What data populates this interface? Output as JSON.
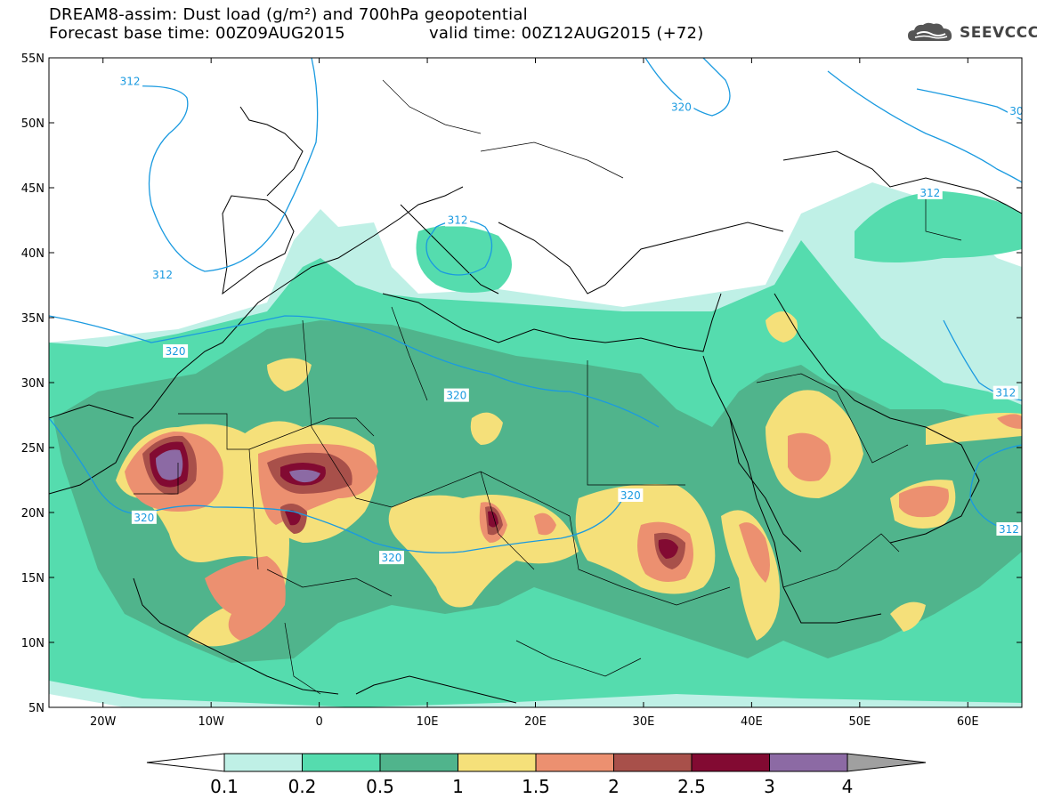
{
  "title": {
    "line1": "DREAM8-assim: Dust load (g/m²) and 700hPa geopotential",
    "base": "Forecast base time: 00Z09AUG2015",
    "valid": "valid time: 00Z12AUG2015 (+72)"
  },
  "logo": {
    "text": "SEEVCCC",
    "icon": "cloud-icon"
  },
  "axes": {
    "lat_labels": [
      "55N",
      "50N",
      "45N",
      "40N",
      "35N",
      "30N",
      "25N",
      "20N",
      "15N",
      "10N",
      "5N"
    ],
    "lat_values": [
      55,
      50,
      45,
      40,
      35,
      30,
      25,
      20,
      15,
      10,
      5
    ],
    "lon_labels": [
      "20W",
      "10W",
      "0",
      "10E",
      "20E",
      "30E",
      "40E",
      "50E",
      "60E"
    ],
    "lon_values": [
      -20,
      -10,
      0,
      10,
      20,
      30,
      40,
      50,
      60
    ],
    "lon_range": [
      -25,
      65
    ],
    "lat_range": [
      5,
      55
    ]
  },
  "contours": {
    "color": "#1a9ae0",
    "labels": [
      {
        "text": "312",
        "lon": -17.5,
        "lat": 53.2
      },
      {
        "text": "312",
        "lon": -14.5,
        "lat": 38.3
      },
      {
        "text": "312",
        "lon": 12.8,
        "lat": 42.5
      },
      {
        "text": "320",
        "lon": 33.5,
        "lat": 51.2
      },
      {
        "text": "312",
        "lon": 56.5,
        "lat": 44.6
      },
      {
        "text": "30",
        "lon": 64.5,
        "lat": 50.9
      },
      {
        "text": "320",
        "lon": -13.3,
        "lat": 32.4
      },
      {
        "text": "320",
        "lon": 12.7,
        "lat": 29.0
      },
      {
        "text": "312",
        "lon": 63.5,
        "lat": 29.2
      },
      {
        "text": "320",
        "lon": -16.2,
        "lat": 19.6
      },
      {
        "text": "320",
        "lon": 28.8,
        "lat": 21.3
      },
      {
        "text": "320",
        "lon": 6.7,
        "lat": 16.5
      },
      {
        "text": "312",
        "lon": 63.8,
        "lat": 18.7
      }
    ]
  },
  "colorbar": {
    "ticks": [
      "0.1",
      "0.2",
      "0.5",
      "1",
      "1.5",
      "2",
      "2.5",
      "3",
      "4"
    ],
    "colors": [
      "#bff0e6",
      "#55dcae",
      "#50b48c",
      "#f5e07a",
      "#ec9070",
      "#a8504a",
      "#820a32",
      "#8c6aa4"
    ],
    "under_color": "#ffffff",
    "over_color": "#a0a0a0"
  }
}
